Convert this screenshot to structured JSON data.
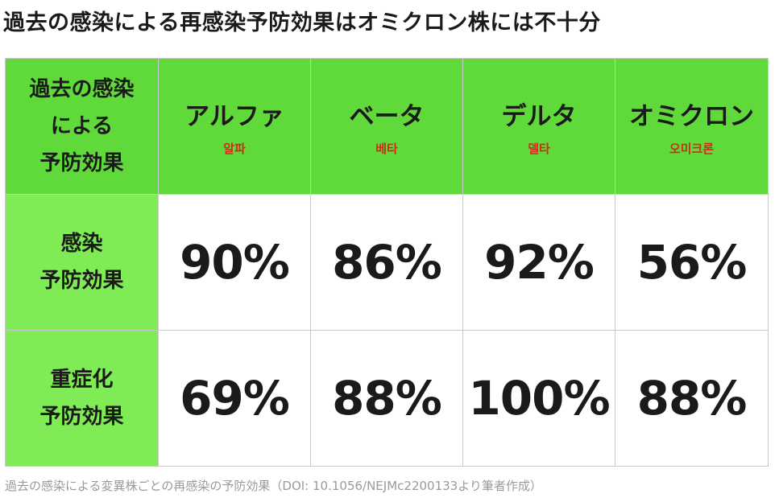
{
  "title": "過去の感染による再感染予防効果はオミクロン株には不十分",
  "table": {
    "corner_label": [
      "過去の感染",
      "による",
      "予防効果"
    ],
    "variants": [
      {
        "name": "アルファ",
        "korean": "알파"
      },
      {
        "name": "ベータ",
        "korean": "베타"
      },
      {
        "name": "デルタ",
        "korean": "델타"
      },
      {
        "name": "オミクロン",
        "korean": "오미크론"
      }
    ],
    "rows": [
      {
        "label": [
          "感染",
          "予防効果"
        ],
        "values": [
          "90%",
          "86%",
          "92%",
          "56%"
        ]
      },
      {
        "label": [
          "重症化",
          "予防効果"
        ],
        "values": [
          "69%",
          "88%",
          "100%",
          "88%"
        ]
      }
    ]
  },
  "caption": "過去の感染による変異株ごとの再感染の予防効果（DOI: 10.1056/NEJMc2200133より筆者作成）",
  "colors": {
    "header_green": "#5fda3a",
    "rowhead_green": "#7fec55",
    "korean_red": "#d8261a"
  }
}
